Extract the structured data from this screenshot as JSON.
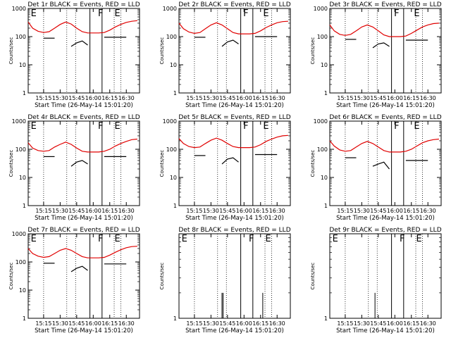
{
  "figure": {
    "background": "#ffffff",
    "events_color": "#000000",
    "lld_color": "#e00000"
  },
  "chart_data": [
    {
      "type": "line",
      "title": "Det 1r BLACK = Events, RED = LLD",
      "xlabel": "Start Time (26-May-14 15:01:20)",
      "ylabel": "Counts/sec",
      "x_ticks": [
        "15:15",
        "15:30",
        "15:45",
        "16:00",
        "16:15",
        "16:30"
      ],
      "y_scale": "log",
      "y_ticks": [
        "1",
        "10",
        "100",
        "1000"
      ],
      "ylim": [
        1,
        1000
      ],
      "x": [
        "15:01",
        "15:05",
        "15:10",
        "15:15",
        "15:20",
        "15:25",
        "15:30",
        "15:35",
        "15:40",
        "15:45",
        "15:50",
        "15:55",
        "16:00",
        "16:05",
        "16:10",
        "16:15",
        "16:20",
        "16:25",
        "16:30",
        "16:35",
        "16:40"
      ],
      "series": [
        {
          "name": "LLD",
          "color": "#e00000",
          "values": [
            330,
            200,
            155,
            140,
            150,
            200,
            270,
            330,
            280,
            200,
            150,
            135,
            135,
            135,
            140,
            170,
            220,
            270,
            320,
            350,
            370
          ]
        },
        {
          "name": "Events",
          "color": "#000000",
          "values": [
            null,
            null,
            null,
            88,
            88,
            88,
            null,
            null,
            45,
            60,
            70,
            50,
            null,
            null,
            95,
            95,
            95,
            95,
            95,
            null,
            null
          ]
        }
      ],
      "markers": [
        {
          "label": "E",
          "time": "15:02"
        },
        {
          "label": "F",
          "time": "16:03"
        },
        {
          "label": "E",
          "time": "16:18"
        }
      ],
      "vlines_solid": [
        "15:57",
        "16:08"
      ],
      "vlines_dotted": [
        "15:15",
        "15:36",
        "15:44",
        "16:19",
        "16:25"
      ]
    },
    {
      "type": "line",
      "title": "Det 2r BLACK = Events, RED = LLD",
      "xlabel": "Start Time (26-May-14 15:01:20)",
      "ylabel": "Counts/sec",
      "x_ticks": [
        "15:15",
        "15:30",
        "15:45",
        "16:00",
        "16:15",
        "16:30"
      ],
      "y_scale": "log",
      "y_ticks": [
        "1",
        "10",
        "100",
        "1000"
      ],
      "ylim": [
        1,
        1000
      ],
      "x": [
        "15:01",
        "15:05",
        "15:10",
        "15:15",
        "15:20",
        "15:25",
        "15:30",
        "15:35",
        "15:40",
        "15:45",
        "15:50",
        "15:55",
        "16:00",
        "16:05",
        "16:10",
        "16:15",
        "16:20",
        "16:25",
        "16:30",
        "16:35",
        "16:40"
      ],
      "series": [
        {
          "name": "LLD",
          "color": "#e00000",
          "values": [
            300,
            190,
            145,
            130,
            140,
            190,
            260,
            310,
            260,
            190,
            140,
            125,
            125,
            125,
            130,
            160,
            210,
            260,
            310,
            340,
            350
          ]
        },
        {
          "name": "Events",
          "color": "#000000",
          "values": [
            null,
            null,
            null,
            95,
            95,
            95,
            null,
            null,
            45,
            65,
            75,
            55,
            null,
            null,
            100,
            100,
            100,
            100,
            100,
            null,
            null
          ]
        }
      ],
      "markers": [
        {
          "label": "F",
          "time": "15:58"
        },
        {
          "label": "E",
          "time": "16:16"
        }
      ],
      "vlines_solid": [
        "15:57",
        "16:08"
      ],
      "vlines_dotted": [
        "15:15",
        "15:36",
        "15:44",
        "16:19",
        "16:25"
      ]
    },
    {
      "type": "line",
      "title": "Det 3r BLACK = Events, RED = LLD",
      "xlabel": "Start Time (26-May-14 15:01:20)",
      "ylabel": "Counts/sec",
      "x_ticks": [
        "15:15",
        "15:30",
        "15:45",
        "16:00",
        "16:15",
        "16:30"
      ],
      "y_scale": "log",
      "y_ticks": [
        "1",
        "10",
        "100",
        "1000"
      ],
      "ylim": [
        1,
        1000
      ],
      "x": [
        "15:01",
        "15:05",
        "15:10",
        "15:15",
        "15:20",
        "15:25",
        "15:30",
        "15:35",
        "15:40",
        "15:45",
        "15:50",
        "15:55",
        "16:00",
        "16:05",
        "16:10",
        "16:15",
        "16:20",
        "16:25",
        "16:30",
        "16:35",
        "16:40"
      ],
      "series": [
        {
          "name": "LLD",
          "color": "#e00000",
          "values": [
            260,
            160,
            120,
            110,
            120,
            160,
            220,
            260,
            220,
            160,
            115,
            100,
            100,
            100,
            105,
            130,
            170,
            220,
            260,
            290,
            300
          ]
        },
        {
          "name": "Events",
          "color": "#000000",
          "values": [
            null,
            null,
            null,
            80,
            80,
            80,
            null,
            null,
            40,
            55,
            60,
            45,
            null,
            null,
            75,
            75,
            75,
            75,
            75,
            null,
            null
          ]
        }
      ],
      "markers": [
        {
          "label": "F",
          "time": "15:58"
        },
        {
          "label": "E",
          "time": "16:16"
        }
      ],
      "vlines_solid": [
        "15:57",
        "16:08"
      ],
      "vlines_dotted": [
        "15:15",
        "15:36",
        "15:44",
        "16:19",
        "16:25"
      ]
    },
    {
      "type": "line",
      "title": "Det 4r BLACK = Events, RED = LLD",
      "xlabel": "Start Time (26-May-14 15:01:20)",
      "ylabel": "Counts/sec",
      "x_ticks": [
        "15:15",
        "15:30",
        "15:45",
        "16:00",
        "16:15",
        "16:30"
      ],
      "y_scale": "log",
      "y_ticks": [
        "1",
        "10",
        "100",
        "1000"
      ],
      "ylim": [
        1,
        1000
      ],
      "x": [
        "15:01",
        "15:05",
        "15:10",
        "15:15",
        "15:20",
        "15:25",
        "15:30",
        "15:35",
        "15:40",
        "15:45",
        "15:50",
        "15:55",
        "16:00",
        "16:05",
        "16:10",
        "16:15",
        "16:20",
        "16:25",
        "16:30",
        "16:35",
        "16:40"
      ],
      "series": [
        {
          "name": "LLD",
          "color": "#e00000",
          "values": [
            170,
            110,
            90,
            85,
            90,
            120,
            150,
            180,
            150,
            110,
            85,
            80,
            80,
            80,
            85,
            100,
            130,
            160,
            190,
            220,
            230
          ]
        },
        {
          "name": "Events",
          "color": "#000000",
          "values": [
            null,
            null,
            null,
            55,
            55,
            55,
            null,
            null,
            25,
            35,
            40,
            30,
            null,
            null,
            55,
            55,
            55,
            55,
            55,
            null,
            null
          ]
        }
      ],
      "markers": [
        {
          "label": "E",
          "time": "15:02"
        },
        {
          "label": "F",
          "time": "16:03"
        },
        {
          "label": "E",
          "time": "16:18"
        }
      ],
      "vlines_solid": [
        "15:57",
        "16:08"
      ],
      "vlines_dotted": [
        "15:15",
        "15:36",
        "15:44",
        "16:19",
        "16:25"
      ]
    },
    {
      "type": "line",
      "title": "Det 5r BLACK = Events, RED = LLD",
      "xlabel": "Start Time (26-May-14 15:01:20)",
      "ylabel": "Counts/sec",
      "x_ticks": [
        "15:15",
        "15:30",
        "15:45",
        "16:00",
        "16:15",
        "16:30"
      ],
      "y_scale": "log",
      "y_ticks": [
        "1",
        "10",
        "100",
        "1000"
      ],
      "ylim": [
        1,
        1000
      ],
      "x": [
        "15:01",
        "15:05",
        "15:10",
        "15:15",
        "15:20",
        "15:25",
        "15:30",
        "15:35",
        "15:40",
        "15:45",
        "15:50",
        "15:55",
        "16:00",
        "16:05",
        "16:10",
        "16:15",
        "16:20",
        "16:25",
        "16:30",
        "16:35",
        "16:40"
      ],
      "series": [
        {
          "name": "LLD",
          "color": "#e00000",
          "values": [
            240,
            160,
            125,
            115,
            120,
            160,
            210,
            250,
            210,
            160,
            125,
            115,
            115,
            115,
            120,
            145,
            190,
            230,
            270,
            300,
            310
          ]
        },
        {
          "name": "Events",
          "color": "#000000",
          "values": [
            null,
            null,
            null,
            60,
            60,
            60,
            null,
            null,
            30,
            45,
            50,
            35,
            null,
            null,
            65,
            65,
            65,
            65,
            65,
            null,
            null
          ]
        }
      ],
      "markers": [
        {
          "label": "F",
          "time": "15:58"
        },
        {
          "label": "E",
          "time": "16:16"
        }
      ],
      "vlines_solid": [
        "15:57",
        "16:08"
      ],
      "vlines_dotted": [
        "15:15",
        "15:36",
        "15:44",
        "16:19",
        "16:25"
      ]
    },
    {
      "type": "line",
      "title": "Det 6r BLACK = Events, RED = LLD",
      "xlabel": "Start Time (26-May-14 15:01:20)",
      "ylabel": "Counts/sec",
      "x_ticks": [
        "15:15",
        "15:30",
        "15:45",
        "16:00",
        "16:15",
        "16:30"
      ],
      "y_scale": "log",
      "y_ticks": [
        "1",
        "10",
        "100",
        "1000"
      ],
      "ylim": [
        1,
        1000
      ],
      "x": [
        "15:01",
        "15:05",
        "15:10",
        "15:15",
        "15:20",
        "15:25",
        "15:30",
        "15:35",
        "15:40",
        "15:45",
        "15:50",
        "15:55",
        "16:00",
        "16:05",
        "16:10",
        "16:15",
        "16:20",
        "16:25",
        "16:30",
        "16:35",
        "16:40"
      ],
      "series": [
        {
          "name": "LLD",
          "color": "#e00000",
          "values": [
            200,
            130,
            95,
            85,
            90,
            120,
            160,
            190,
            160,
            120,
            90,
            80,
            80,
            80,
            85,
            100,
            130,
            170,
            200,
            220,
            230
          ]
        },
        {
          "name": "Events",
          "color": "#000000",
          "values": [
            null,
            null,
            null,
            50,
            50,
            50,
            null,
            null,
            25,
            30,
            35,
            20,
            null,
            null,
            40,
            40,
            40,
            40,
            40,
            null,
            null
          ]
        }
      ],
      "markers": [
        {
          "label": "F",
          "time": "15:58"
        },
        {
          "label": "E",
          "time": "16:16"
        }
      ],
      "vlines_solid": [
        "15:57",
        "16:08"
      ],
      "vlines_dotted": [
        "15:15",
        "15:36",
        "15:44",
        "16:19",
        "16:25"
      ]
    },
    {
      "type": "line",
      "title": "Det 7r BLACK = Events, RED = LLD",
      "xlabel": "Start Time (26-May-14 15:01:20)",
      "ylabel": "Counts/sec",
      "x_ticks": [
        "15:15",
        "15:30",
        "15:45",
        "16:00",
        "16:15",
        "16:30"
      ],
      "y_scale": "log",
      "y_ticks": [
        "1",
        "10",
        "100",
        "1000"
      ],
      "ylim": [
        1,
        1000
      ],
      "x": [
        "15:01",
        "15:05",
        "15:10",
        "15:15",
        "15:20",
        "15:25",
        "15:30",
        "15:35",
        "15:40",
        "15:45",
        "15:50",
        "15:55",
        "16:00",
        "16:05",
        "16:10",
        "16:15",
        "16:20",
        "16:25",
        "16:30",
        "16:35",
        "16:40"
      ],
      "series": [
        {
          "name": "LLD",
          "color": "#e00000",
          "values": [
            300,
            200,
            160,
            145,
            155,
            200,
            260,
            300,
            260,
            200,
            155,
            140,
            140,
            140,
            145,
            175,
            220,
            270,
            320,
            350,
            360
          ]
        },
        {
          "name": "Events",
          "color": "#000000",
          "values": [
            null,
            null,
            null,
            90,
            90,
            90,
            null,
            null,
            45,
            60,
            70,
            50,
            null,
            null,
            85,
            85,
            85,
            85,
            85,
            null,
            null
          ]
        }
      ],
      "markers": [
        {
          "label": "E",
          "time": "15:02"
        },
        {
          "label": "F",
          "time": "16:03"
        },
        {
          "label": "E",
          "time": "16:18"
        }
      ],
      "vlines_solid": [
        "15:57",
        "16:08"
      ],
      "vlines_dotted": [
        "15:15",
        "15:36",
        "15:44",
        "16:19",
        "16:25"
      ]
    },
    {
      "type": "line",
      "title": "Det 8r BLACK = Events, RED = LLD",
      "xlabel": "Start Time (26-May-14 15:01:20)",
      "ylabel": "Counts/sec",
      "x_ticks": [
        "15:15",
        "15:30",
        "15:45",
        "16:00",
        "16:15",
        "16:30"
      ],
      "y_scale": "log",
      "y_ticks": [
        "1"
      ],
      "ylim": [
        1,
        10
      ],
      "x": [],
      "series": [],
      "spikes": [
        {
          "time": "15:40",
          "value": 2.0
        },
        {
          "time": "15:41",
          "value": 2.0
        },
        {
          "time": "16:17",
          "value": 2.0
        }
      ],
      "markers": [
        {
          "label": "E",
          "time": "15:02"
        },
        {
          "label": "F",
          "time": "16:03"
        },
        {
          "label": "E",
          "time": "16:18"
        }
      ],
      "vlines_solid": [
        "15:57",
        "16:08"
      ],
      "vlines_dotted": [
        "15:15",
        "15:36",
        "15:44",
        "16:19",
        "16:25"
      ]
    },
    {
      "type": "line",
      "title": "Det 9r BLACK = Events, RED = LLD",
      "xlabel": "Start Time (26-May-14 15:01:20)",
      "ylabel": "Counts/sec",
      "x_ticks": [
        "15:15",
        "15:30",
        "15:45",
        "16:00",
        "16:15",
        "16:30"
      ],
      "y_scale": "log",
      "y_ticks": [
        "1"
      ],
      "ylim": [
        1,
        10
      ],
      "x": [],
      "series": [],
      "spikes": [
        {
          "time": "15:42",
          "value": 2.0
        }
      ],
      "markers": [
        {
          "label": "E",
          "time": "15:02"
        },
        {
          "label": "F",
          "time": "16:03"
        },
        {
          "label": "E",
          "time": "16:18"
        }
      ],
      "vlines_solid": [
        "15:57",
        "16:08"
      ],
      "vlines_dotted": [
        "15:15",
        "15:36",
        "15:44",
        "16:19",
        "16:25"
      ]
    }
  ]
}
